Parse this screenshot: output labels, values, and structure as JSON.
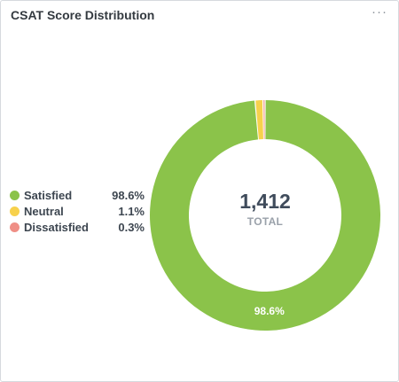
{
  "header": {
    "title": "CSAT Score Distribution",
    "menu_icon": "more-horizontal-icon"
  },
  "chart_data": {
    "type": "pie",
    "variant": "donut",
    "title": "CSAT Score Distribution",
    "center": {
      "value": "1,412",
      "label": "TOTAL"
    },
    "legend_position": "left",
    "slices": [
      {
        "label": "Satisfied",
        "percent_label": "98.6%",
        "value": 98.6,
        "color": "#8bc34a",
        "shows_data_label": true
      },
      {
        "label": "Neutral",
        "percent_label": "1.1%",
        "value": 1.1,
        "color": "#f7d14c"
      },
      {
        "label": "Dissatisfied",
        "percent_label": "0.3%",
        "value": 0.3,
        "color": "#ef8f86"
      }
    ]
  }
}
